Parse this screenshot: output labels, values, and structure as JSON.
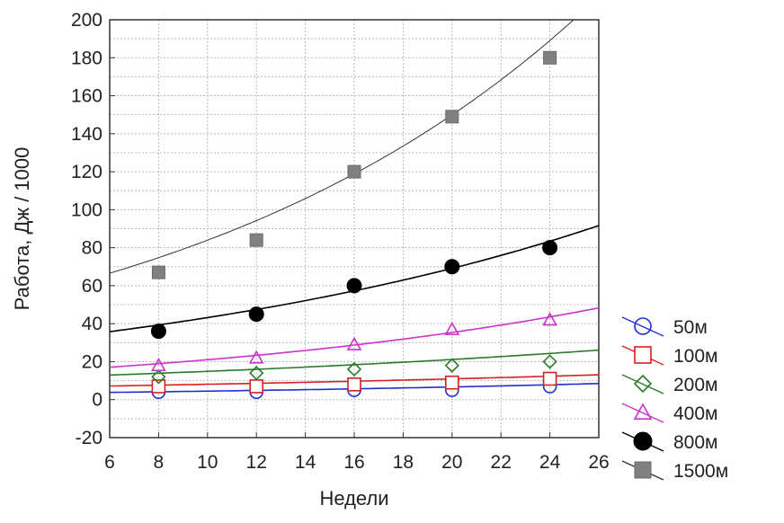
{
  "chart_data": {
    "type": "scatter",
    "title": "",
    "xlabel": "Недели",
    "ylabel": "Работа, Дж / 1000",
    "xlim": [
      6,
      26
    ],
    "ylim": [
      -20,
      200
    ],
    "x_ticks": [
      "6",
      "8",
      "10",
      "12",
      "14",
      "16",
      "18",
      "20",
      "22",
      "24",
      "26"
    ],
    "y_ticks": [
      "-20",
      "0",
      "20",
      "40",
      "60",
      "80",
      "100",
      "120",
      "140",
      "160",
      "180",
      "200"
    ],
    "grid": true,
    "legend_position": "right",
    "x": [
      8,
      12,
      16,
      20,
      24
    ],
    "series": [
      {
        "name": "50м",
        "marker": "circle",
        "color": "#1f2fd0",
        "values": [
          4,
          4,
          5,
          5,
          7
        ],
        "fit": {
          "type": "exp",
          "a": 3.0,
          "b": 0.04
        }
      },
      {
        "name": "100м",
        "marker": "square-open",
        "color": "#d42020",
        "values": [
          7,
          7,
          8,
          9,
          11
        ],
        "fit": {
          "type": "exp",
          "a": 6.0,
          "b": 0.03
        }
      },
      {
        "name": "200м",
        "marker": "diamond",
        "color": "#2a7a2a",
        "values": [
          12,
          14,
          16,
          18,
          20
        ],
        "fit": {
          "type": "exp",
          "a": 10.5,
          "b": 0.035
        }
      },
      {
        "name": "400м",
        "marker": "triangle",
        "color": "#cc33cc",
        "values": [
          18,
          22,
          29,
          37,
          42
        ],
        "fit": {
          "type": "exp",
          "a": 12.5,
          "b": 0.052
        }
      },
      {
        "name": "800м",
        "marker": "circle-filled",
        "color": "#000000",
        "values": [
          36,
          45,
          60,
          70,
          80
        ],
        "fit": {
          "type": "exp",
          "a": 27.0,
          "b": 0.047
        }
      },
      {
        "name": "1500м",
        "marker": "square-filled",
        "color": "#808080",
        "values": [
          67,
          84,
          120,
          149,
          180
        ],
        "fit": {
          "type": "exp",
          "a": 47.0,
          "b": 0.058
        }
      }
    ]
  }
}
